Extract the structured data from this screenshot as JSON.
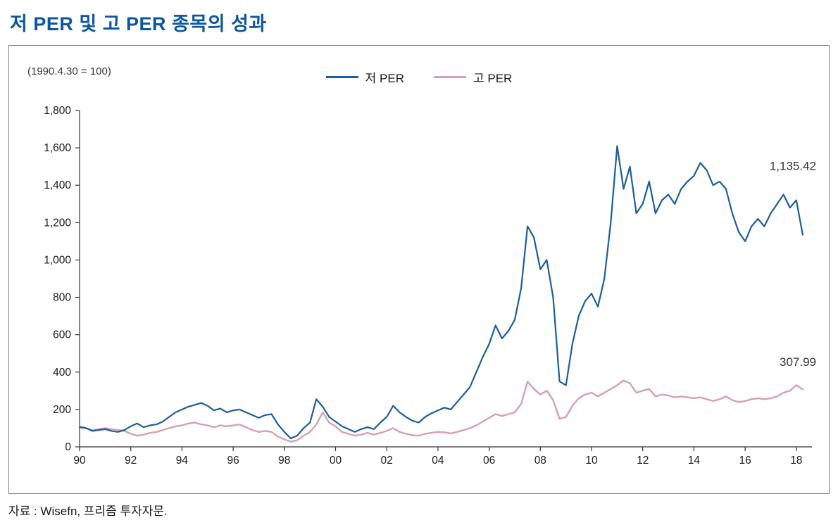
{
  "page": {
    "title": "저 PER 및 고 PER 종목의 성과",
    "source_note": "자료 : Wisefn, 프리즘 투자자문."
  },
  "chart_data": {
    "type": "line",
    "title": "저 PER 및 고 PER 종목의 성과",
    "base_note": "(1990.4.30 = 100)",
    "grid": false,
    "legend_position": "top-center",
    "ylim": [
      0,
      1800
    ],
    "y_tick_step": 200,
    "y_ticks": [
      "0",
      "200",
      "400",
      "600",
      "800",
      "1,000",
      "1,200",
      "1,400",
      "1,600",
      "1,800"
    ],
    "x_ticks": [
      "90",
      "92",
      "94",
      "96",
      "98",
      "00",
      "02",
      "04",
      "06",
      "08",
      "10",
      "12",
      "14",
      "16",
      "18"
    ],
    "x_tick_year_start": 1990,
    "x_tick_year_step": 2,
    "x_start": 1990.0,
    "x_step": 0.25,
    "x_domain_end": 2018.5,
    "series": [
      {
        "name": "저 PER",
        "color": "#1b5e9e",
        "stroke_width": 2.2,
        "final_value": 1135.42,
        "final_label": "1,135.42",
        "label_dy": -92,
        "values": [
          105,
          100,
          85,
          90,
          95,
          85,
          80,
          90,
          110,
          125,
          105,
          115,
          120,
          135,
          160,
          185,
          200,
          215,
          225,
          235,
          220,
          195,
          205,
          185,
          195,
          200,
          185,
          170,
          155,
          170,
          175,
          120,
          80,
          45,
          60,
          100,
          130,
          255,
          215,
          160,
          135,
          110,
          95,
          80,
          95,
          105,
          95,
          130,
          160,
          220,
          185,
          160,
          140,
          130,
          160,
          180,
          195,
          210,
          200,
          240,
          280,
          320,
          400,
          480,
          550,
          650,
          580,
          620,
          680,
          850,
          1180,
          1120,
          950,
          1000,
          800,
          350,
          330,
          550,
          700,
          780,
          820,
          750,
          900,
          1200,
          1610,
          1380,
          1500,
          1250,
          1300,
          1420,
          1250,
          1320,
          1350,
          1300,
          1380,
          1420,
          1450,
          1520,
          1480,
          1400,
          1420,
          1380,
          1250,
          1150,
          1100,
          1180,
          1220,
          1180,
          1250,
          1300,
          1350,
          1280,
          1320,
          1135.42
        ]
      },
      {
        "name": "고 PER",
        "color": "#d79fb6",
        "stroke_width": 2.4,
        "final_value": 307.99,
        "final_label": "307.99",
        "label_dy": -33,
        "values": [
          110,
          100,
          90,
          95,
          100,
          95,
          90,
          85,
          70,
          60,
          65,
          75,
          80,
          90,
          100,
          110,
          115,
          125,
          130,
          120,
          115,
          105,
          115,
          110,
          115,
          120,
          105,
          90,
          80,
          85,
          80,
          55,
          40,
          28,
          35,
          60,
          80,
          120,
          185,
          130,
          110,
          80,
          70,
          60,
          65,
          75,
          65,
          75,
          85,
          100,
          80,
          70,
          62,
          60,
          70,
          75,
          80,
          78,
          72,
          80,
          90,
          100,
          115,
          135,
          155,
          175,
          165,
          175,
          185,
          230,
          350,
          310,
          280,
          300,
          250,
          150,
          160,
          220,
          260,
          280,
          290,
          270,
          290,
          310,
          330,
          355,
          340,
          290,
          300,
          310,
          270,
          280,
          275,
          265,
          270,
          265,
          260,
          265,
          255,
          245,
          255,
          270,
          250,
          240,
          245,
          255,
          260,
          255,
          260,
          270,
          290,
          300,
          330,
          307.99
        ]
      }
    ]
  }
}
